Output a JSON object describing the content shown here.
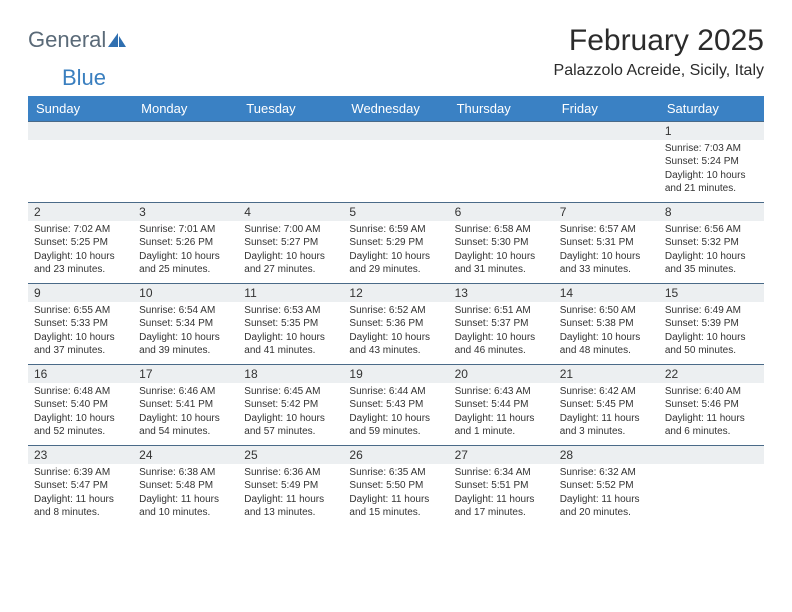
{
  "logo": {
    "text1": "General",
    "text2": "Blue",
    "color1": "#5a6a78",
    "color2": "#3a7fbf"
  },
  "title": "February 2025",
  "location": "Palazzolo Acreide, Sicily, Italy",
  "colors": {
    "headerBg": "#3a81c4",
    "headerText": "#ffffff",
    "daynumBg": "#eceff1",
    "rowBorder": "#4a6a88",
    "pageBg": "#ffffff",
    "text": "#333333"
  },
  "dayHeaders": [
    "Sunday",
    "Monday",
    "Tuesday",
    "Wednesday",
    "Thursday",
    "Friday",
    "Saturday"
  ],
  "weeks": [
    {
      "nums": [
        "",
        "",
        "",
        "",
        "",
        "",
        "1"
      ],
      "sunrise": [
        "",
        "",
        "",
        "",
        "",
        "",
        "Sunrise: 7:03 AM"
      ],
      "sunset": [
        "",
        "",
        "",
        "",
        "",
        "",
        "Sunset: 5:24 PM"
      ],
      "day1": [
        "",
        "",
        "",
        "",
        "",
        "",
        "Daylight: 10 hours"
      ],
      "day2": [
        "",
        "",
        "",
        "",
        "",
        "",
        "and 21 minutes."
      ]
    },
    {
      "nums": [
        "2",
        "3",
        "4",
        "5",
        "6",
        "7",
        "8"
      ],
      "sunrise": [
        "Sunrise: 7:02 AM",
        "Sunrise: 7:01 AM",
        "Sunrise: 7:00 AM",
        "Sunrise: 6:59 AM",
        "Sunrise: 6:58 AM",
        "Sunrise: 6:57 AM",
        "Sunrise: 6:56 AM"
      ],
      "sunset": [
        "Sunset: 5:25 PM",
        "Sunset: 5:26 PM",
        "Sunset: 5:27 PM",
        "Sunset: 5:29 PM",
        "Sunset: 5:30 PM",
        "Sunset: 5:31 PM",
        "Sunset: 5:32 PM"
      ],
      "day1": [
        "Daylight: 10 hours",
        "Daylight: 10 hours",
        "Daylight: 10 hours",
        "Daylight: 10 hours",
        "Daylight: 10 hours",
        "Daylight: 10 hours",
        "Daylight: 10 hours"
      ],
      "day2": [
        "and 23 minutes.",
        "and 25 minutes.",
        "and 27 minutes.",
        "and 29 minutes.",
        "and 31 minutes.",
        "and 33 minutes.",
        "and 35 minutes."
      ]
    },
    {
      "nums": [
        "9",
        "10",
        "11",
        "12",
        "13",
        "14",
        "15"
      ],
      "sunrise": [
        "Sunrise: 6:55 AM",
        "Sunrise: 6:54 AM",
        "Sunrise: 6:53 AM",
        "Sunrise: 6:52 AM",
        "Sunrise: 6:51 AM",
        "Sunrise: 6:50 AM",
        "Sunrise: 6:49 AM"
      ],
      "sunset": [
        "Sunset: 5:33 PM",
        "Sunset: 5:34 PM",
        "Sunset: 5:35 PM",
        "Sunset: 5:36 PM",
        "Sunset: 5:37 PM",
        "Sunset: 5:38 PM",
        "Sunset: 5:39 PM"
      ],
      "day1": [
        "Daylight: 10 hours",
        "Daylight: 10 hours",
        "Daylight: 10 hours",
        "Daylight: 10 hours",
        "Daylight: 10 hours",
        "Daylight: 10 hours",
        "Daylight: 10 hours"
      ],
      "day2": [
        "and 37 minutes.",
        "and 39 minutes.",
        "and 41 minutes.",
        "and 43 minutes.",
        "and 46 minutes.",
        "and 48 minutes.",
        "and 50 minutes."
      ]
    },
    {
      "nums": [
        "16",
        "17",
        "18",
        "19",
        "20",
        "21",
        "22"
      ],
      "sunrise": [
        "Sunrise: 6:48 AM",
        "Sunrise: 6:46 AM",
        "Sunrise: 6:45 AM",
        "Sunrise: 6:44 AM",
        "Sunrise: 6:43 AM",
        "Sunrise: 6:42 AM",
        "Sunrise: 6:40 AM"
      ],
      "sunset": [
        "Sunset: 5:40 PM",
        "Sunset: 5:41 PM",
        "Sunset: 5:42 PM",
        "Sunset: 5:43 PM",
        "Sunset: 5:44 PM",
        "Sunset: 5:45 PM",
        "Sunset: 5:46 PM"
      ],
      "day1": [
        "Daylight: 10 hours",
        "Daylight: 10 hours",
        "Daylight: 10 hours",
        "Daylight: 10 hours",
        "Daylight: 11 hours",
        "Daylight: 11 hours",
        "Daylight: 11 hours"
      ],
      "day2": [
        "and 52 minutes.",
        "and 54 minutes.",
        "and 57 minutes.",
        "and 59 minutes.",
        "and 1 minute.",
        "and 3 minutes.",
        "and 6 minutes."
      ]
    },
    {
      "nums": [
        "23",
        "24",
        "25",
        "26",
        "27",
        "28",
        ""
      ],
      "sunrise": [
        "Sunrise: 6:39 AM",
        "Sunrise: 6:38 AM",
        "Sunrise: 6:36 AM",
        "Sunrise: 6:35 AM",
        "Sunrise: 6:34 AM",
        "Sunrise: 6:32 AM",
        ""
      ],
      "sunset": [
        "Sunset: 5:47 PM",
        "Sunset: 5:48 PM",
        "Sunset: 5:49 PM",
        "Sunset: 5:50 PM",
        "Sunset: 5:51 PM",
        "Sunset: 5:52 PM",
        ""
      ],
      "day1": [
        "Daylight: 11 hours",
        "Daylight: 11 hours",
        "Daylight: 11 hours",
        "Daylight: 11 hours",
        "Daylight: 11 hours",
        "Daylight: 11 hours",
        ""
      ],
      "day2": [
        "and 8 minutes.",
        "and 10 minutes.",
        "and 13 minutes.",
        "and 15 minutes.",
        "and 17 minutes.",
        "and 20 minutes.",
        ""
      ]
    }
  ]
}
